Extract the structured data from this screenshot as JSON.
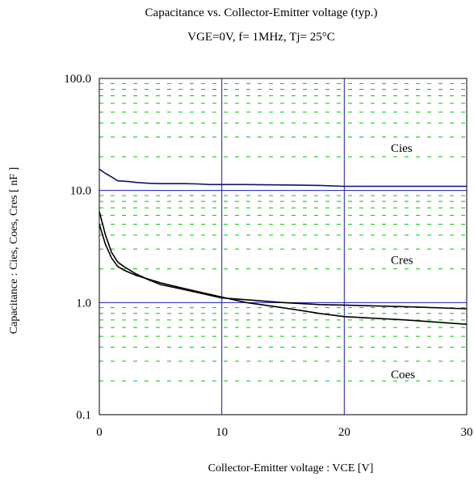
{
  "chart_data": {
    "type": "line",
    "title": "Capacitance  vs.  Collector-Emitter voltage (typ.)",
    "subtitle": "VGE=0V,  f= 1MHz,  Tj= 25°C",
    "xlabel": "Collector-Emitter voltage : VCE [V]",
    "ylabel": "Capacitance  :  Cies, Coes, Cres  [ nF ]",
    "xlim": [
      0,
      30
    ],
    "ylim": [
      0.1,
      100
    ],
    "yscale": "log",
    "xticks": [
      "0",
      "10",
      "20",
      "30"
    ],
    "yticks": [
      "0.1",
      "1.0",
      "10.0",
      "100.0"
    ],
    "grid": {
      "major": "blue solid",
      "minor": "green dashed"
    },
    "colors": {
      "major_grid": "#1c1cb4",
      "minor_grid": "#00c800",
      "cies": "#101070",
      "cres": "#000000",
      "coes": "#000000"
    },
    "series": [
      {
        "name": "Cies",
        "x": [
          0,
          0.5,
          1,
          1.5,
          2,
          2.5,
          3,
          4,
          5,
          7,
          8,
          9,
          10,
          12,
          15,
          18,
          20,
          25,
          30
        ],
        "y": [
          15.5,
          14.2,
          13.2,
          12.2,
          12.1,
          12.0,
          11.8,
          11.6,
          11.5,
          11.5,
          11.45,
          11.3,
          11.3,
          11.3,
          11.2,
          11.1,
          10.9,
          10.9,
          10.9
        ]
      },
      {
        "name": "Cres",
        "x": [
          0,
          0.5,
          1,
          1.5,
          2,
          3,
          4,
          5,
          7,
          10,
          12,
          15,
          18,
          20,
          25,
          30
        ],
        "y": [
          6.5,
          4.0,
          2.8,
          2.3,
          2.1,
          1.8,
          1.6,
          1.45,
          1.3,
          1.1,
          1.06,
          1.0,
          0.96,
          0.95,
          0.92,
          0.88
        ]
      },
      {
        "name": "Coes",
        "x": [
          0,
          0.5,
          1,
          1.5,
          2,
          3,
          4,
          5,
          7,
          10,
          12,
          15,
          18,
          20,
          25,
          30
        ],
        "y": [
          5.0,
          3.3,
          2.5,
          2.1,
          1.95,
          1.75,
          1.62,
          1.5,
          1.33,
          1.12,
          1.0,
          0.9,
          0.8,
          0.75,
          0.7,
          0.64
        ]
      }
    ],
    "annotations": [
      {
        "text": "Cies",
        "x": 23.8,
        "y": 24
      },
      {
        "text": "Cres",
        "x": 23.8,
        "y": 2.4
      },
      {
        "text": "Coes",
        "x": 23.8,
        "y": 0.23
      }
    ]
  }
}
